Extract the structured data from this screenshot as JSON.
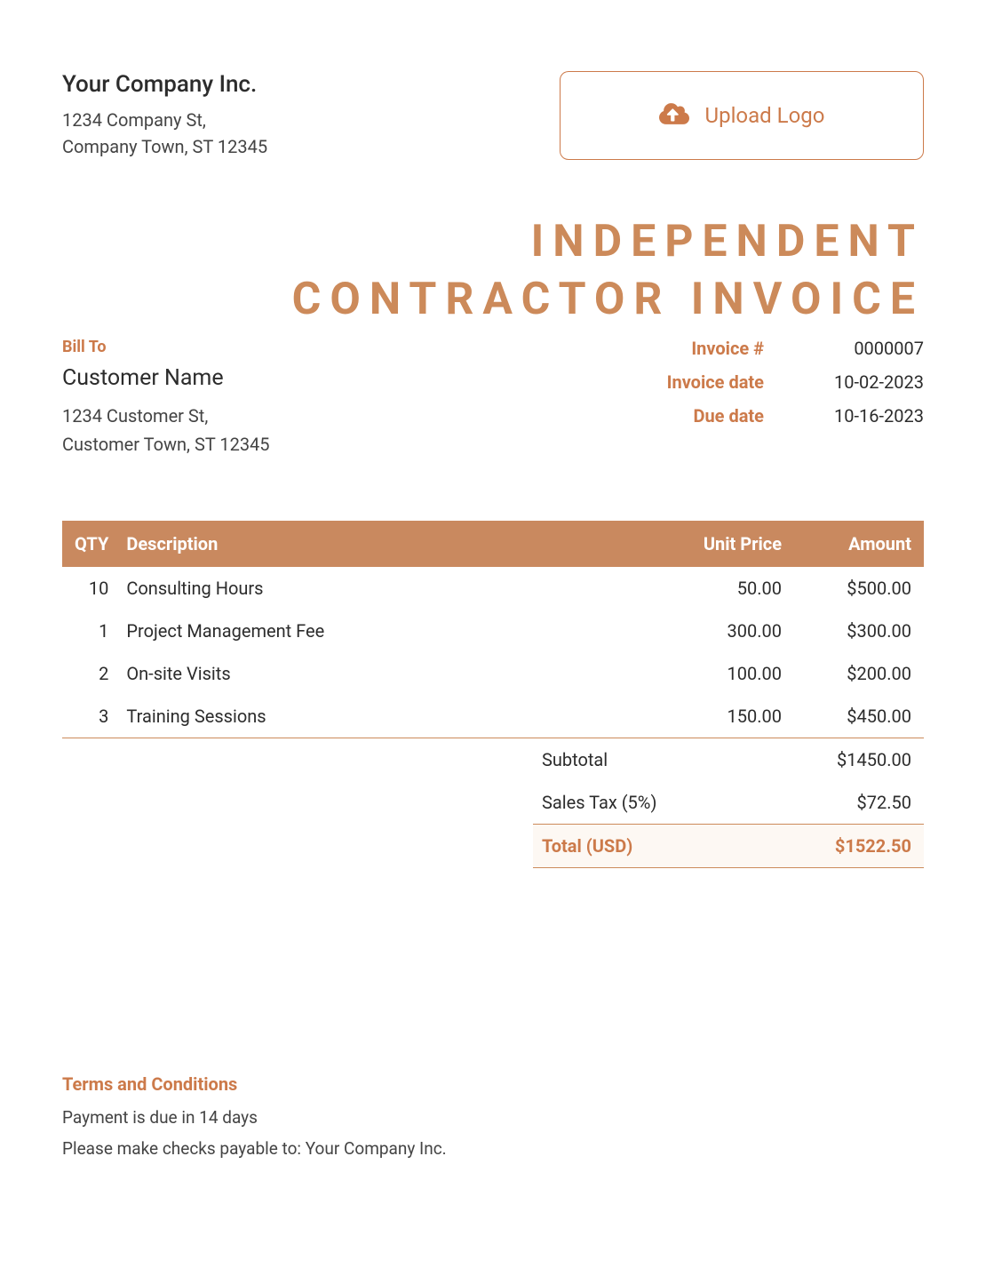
{
  "colors": {
    "accent": "#cc7a4a",
    "accent_light": "#cc8a5a",
    "header_bg": "#c9895f",
    "total_bg": "#fdf8f3",
    "text": "#2c2c2c",
    "muted": "#444444",
    "background": "#ffffff"
  },
  "company": {
    "name": "Your Company Inc.",
    "address_line1": "1234 Company St,",
    "address_line2": "Company Town, ST 12345"
  },
  "upload": {
    "label": "Upload Logo"
  },
  "title_line1": "INDEPENDENT",
  "title_line2": "CONTRACTOR INVOICE",
  "bill_to": {
    "label": "Bill To",
    "name": "Customer Name",
    "address_line1": "1234 Customer St,",
    "address_line2": "Customer Town, ST 12345"
  },
  "meta": {
    "invoice_num_label": "Invoice #",
    "invoice_num": "0000007",
    "invoice_date_label": "Invoice date",
    "invoice_date": "10-02-2023",
    "due_date_label": "Due date",
    "due_date": "10-16-2023"
  },
  "table": {
    "columns": {
      "qty": "QTY",
      "desc": "Description",
      "price": "Unit Price",
      "amount": "Amount"
    },
    "rows": [
      {
        "qty": "10",
        "desc": "Consulting Hours",
        "price": "50.00",
        "amount": "$500.00"
      },
      {
        "qty": "1",
        "desc": "Project Management Fee",
        "price": "300.00",
        "amount": "$300.00"
      },
      {
        "qty": "2",
        "desc": "On-site Visits",
        "price": "100.00",
        "amount": "$200.00"
      },
      {
        "qty": "3",
        "desc": "Training Sessions",
        "price": "150.00",
        "amount": "$450.00"
      }
    ]
  },
  "totals": {
    "subtotal_label": "Subtotal",
    "subtotal": "$1450.00",
    "tax_label": "Sales Tax (5%)",
    "tax": "$72.50",
    "total_label": "Total (USD)",
    "total": "$1522.50"
  },
  "terms": {
    "title": "Terms and Conditions",
    "line1": "Payment is due in 14 days",
    "line2": "Please make checks payable to: Your Company Inc."
  }
}
